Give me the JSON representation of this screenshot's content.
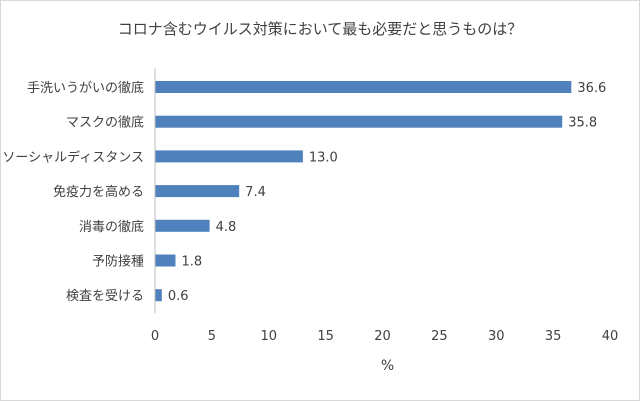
{
  "chart_data": {
    "type": "bar",
    "orientation": "horizontal",
    "title": "コロナ含むウイルス対策において最も必要だと思うものは？",
    "xlabel": "%",
    "ylabel": "",
    "xlim": [
      0,
      40
    ],
    "xticks": [
      0,
      5,
      10,
      15,
      20,
      25,
      30,
      35,
      40
    ],
    "categories": [
      "手洗いうがいの徹底",
      "マスクの徹底",
      "ソーシャルディスタンス",
      "免疫力を高める",
      "消毒の徹底",
      "予防接種",
      "検査を受ける"
    ],
    "values": [
      36.6,
      35.8,
      13.0,
      7.4,
      4.8,
      1.8,
      0.6
    ],
    "value_labels": [
      "36.6",
      "35.8",
      "13.0",
      "7.4",
      "4.8",
      "1.8",
      "0.6"
    ],
    "bar_color": "#4f81bd",
    "grid": false,
    "legend": "none"
  }
}
